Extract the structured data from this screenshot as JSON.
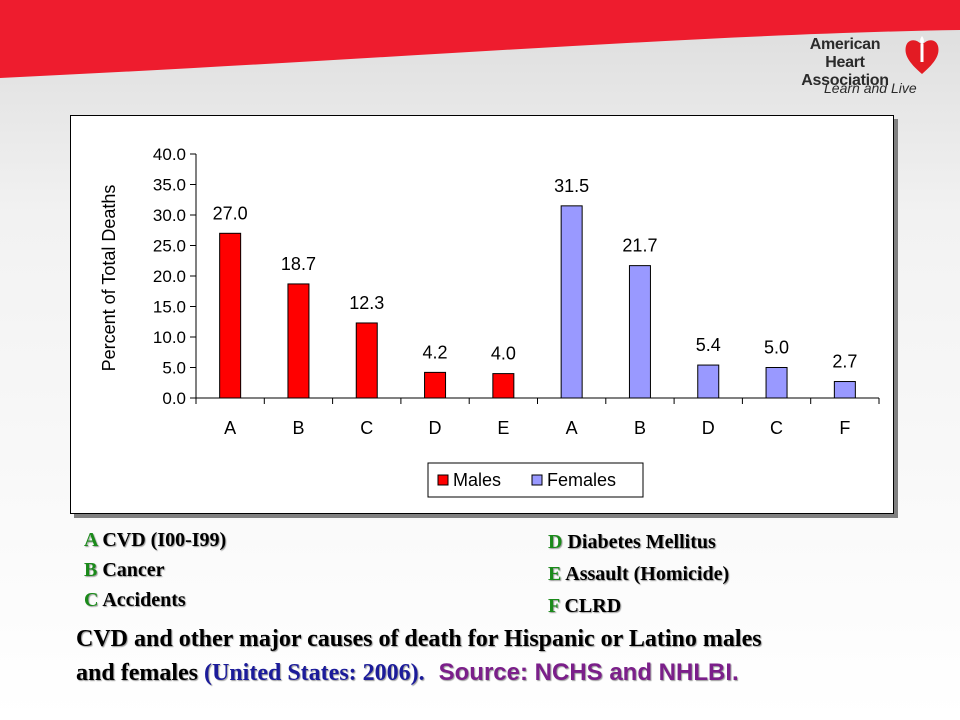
{
  "brand": {
    "name_line1": "American Heart",
    "name_line2": "Association",
    "tagline": "Learn and Live"
  },
  "colors": {
    "banner_red": "#ee1c2e",
    "male_bar": "#ff0000",
    "female_bar": "#9999ff",
    "code_green": "#1a8a1a",
    "caption_blue": "#1b1b9a",
    "source_purple": "#7b1f8a"
  },
  "chart_data": {
    "type": "bar",
    "ylabel": "Percent of Total Deaths",
    "ylim": [
      0,
      40
    ],
    "yticks": [
      "0.0",
      "5.0",
      "10.0",
      "15.0",
      "20.0",
      "25.0",
      "30.0",
      "35.0",
      "40.0"
    ],
    "legend_position": "bottom",
    "grid": false,
    "series": [
      {
        "name": "Males",
        "color": "#ff0000",
        "categories": [
          "A",
          "B",
          "C",
          "D",
          "E"
        ],
        "values": [
          27.0,
          18.7,
          12.3,
          4.2,
          4.0
        ],
        "labels": [
          "27.0",
          "18.7",
          "12.3",
          "4.2",
          "4.0"
        ]
      },
      {
        "name": "Females",
        "color": "#9999ff",
        "categories": [
          "A",
          "B",
          "D",
          "C",
          "F"
        ],
        "values": [
          31.5,
          21.7,
          5.4,
          5.0,
          2.7
        ],
        "labels": [
          "31.5",
          "21.7",
          "5.4",
          "5.0",
          "2.7"
        ]
      }
    ]
  },
  "codes": {
    "left": [
      {
        "code": "A",
        "text": "CVD (I00-I99)"
      },
      {
        "code": "B",
        "text": "Cancer"
      },
      {
        "code": "C",
        "text": "Accidents"
      }
    ],
    "right": [
      {
        "code": "D",
        "text": "Diabetes Mellitus"
      },
      {
        "code": "E",
        "text": "Assault (Homicide)"
      },
      {
        "code": "F",
        "text": "CLRD"
      }
    ]
  },
  "caption": {
    "line1": "CVD and other major causes of death for Hispanic or Latino males",
    "line2_start": "and females ",
    "place": "(United States: 2006).",
    "source": "Source: NCHS and NHLBI."
  }
}
